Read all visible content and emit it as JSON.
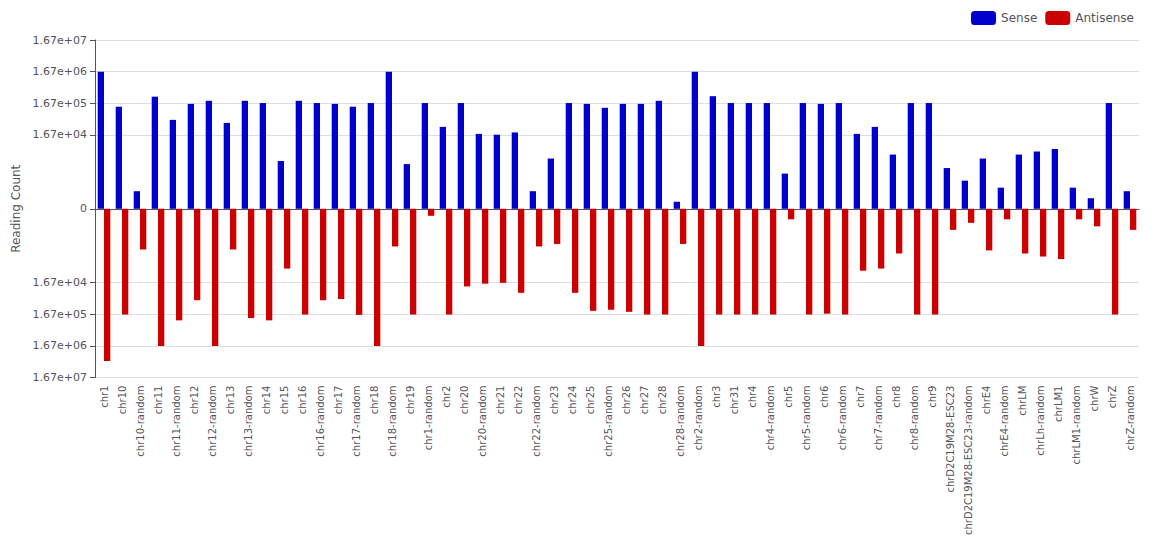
{
  "chart_data": {
    "type": "bar",
    "categories": [
      "chr1",
      "chr10",
      "chr10-random",
      "chr11",
      "chr11-random",
      "chr12",
      "chr12-random",
      "chr13",
      "chr13-random",
      "chr14",
      "chr15",
      "chr16",
      "chr16-random",
      "chr17",
      "chr17-random",
      "chr18",
      "chr18-random",
      "chr19",
      "chr1-random",
      "chr2",
      "chr20",
      "chr20-random",
      "chr21",
      "chr22",
      "chr22-random",
      "chr23",
      "chr24",
      "chr25",
      "chr25-random",
      "chr26",
      "chr27",
      "chr28",
      "chr28-random",
      "chr2-random",
      "chr3",
      "chr31",
      "chr4",
      "chr4-random",
      "chr5",
      "chr5-random",
      "chr6",
      "chr6-random",
      "chr7",
      "chr7-random",
      "chr8",
      "chr8-random",
      "chr9",
      "chrD2C19M28-ESC23",
      "chrD2C19M28-ESC23-random",
      "chrE4",
      "chrE4-random",
      "chrLM",
      "chrLh-random",
      "chrLM1",
      "chrLM1-random",
      "chrW",
      "chrZ",
      "chrZ-random"
    ],
    "series": [
      {
        "name": "Sense",
        "color": "#0000CC",
        "values": [
          1670000,
          130000,
          500,
          270000,
          50000,
          160000,
          200000,
          40000,
          200000,
          170000,
          2500,
          200000,
          170000,
          160000,
          130000,
          170000,
          1670000,
          2000,
          170000,
          30000,
          170000,
          18000,
          17000,
          20000,
          500,
          3000,
          170000,
          160000,
          120000,
          160000,
          160000,
          200000,
          200,
          1670000,
          280000,
          170000,
          170000,
          170000,
          1000,
          170000,
          160000,
          170000,
          18000,
          30000,
          4000,
          170000,
          170000,
          1500,
          800,
          3000,
          600,
          4000,
          5000,
          6000,
          600,
          300,
          170000,
          500
        ]
      },
      {
        "name": "Antisense",
        "color": "#CC0000",
        "values": [
          -5000000,
          -170000,
          -1500,
          -1670000,
          -260000,
          -60000,
          -1670000,
          -1500,
          -220000,
          -260000,
          -6000,
          -170000,
          -60000,
          -55000,
          -175000,
          -1670000,
          -1200,
          -170000,
          -200,
          -170000,
          -22000,
          -18000,
          -17000,
          -35000,
          -1200,
          -1000,
          -35000,
          -130000,
          -120000,
          -140000,
          -170000,
          -170000,
          -1000,
          -1670000,
          -170000,
          -170000,
          -170000,
          -170000,
          -300,
          -170000,
          -160000,
          -170000,
          -7000,
          -6000,
          -2000,
          -170000,
          -170000,
          -600,
          -400,
          -1600,
          -300,
          -2000,
          -2500,
          -3000,
          -300,
          -500,
          -170000,
          -600
        ]
      }
    ],
    "ylabel": "Reading Count",
    "ylim": [
      -16700000,
      16700000
    ],
    "yticks": [
      {
        "value": 16700000,
        "label": "1.67e+07"
      },
      {
        "value": 1670000,
        "label": "1.67e+06"
      },
      {
        "value": 167000,
        "label": "1.67e+05"
      },
      {
        "value": 16700,
        "label": "1.67e+04"
      },
      0,
      {
        "value": -16700,
        "label": "1.67e+04"
      },
      {
        "value": -167000,
        "label": "1.67e+05"
      },
      {
        "value": -1670000,
        "label": "1.67e+06"
      },
      {
        "value": -16700000,
        "label": "1.67e+07"
      }
    ],
    "log": "y",
    "grid": true,
    "legend": "upper right"
  }
}
